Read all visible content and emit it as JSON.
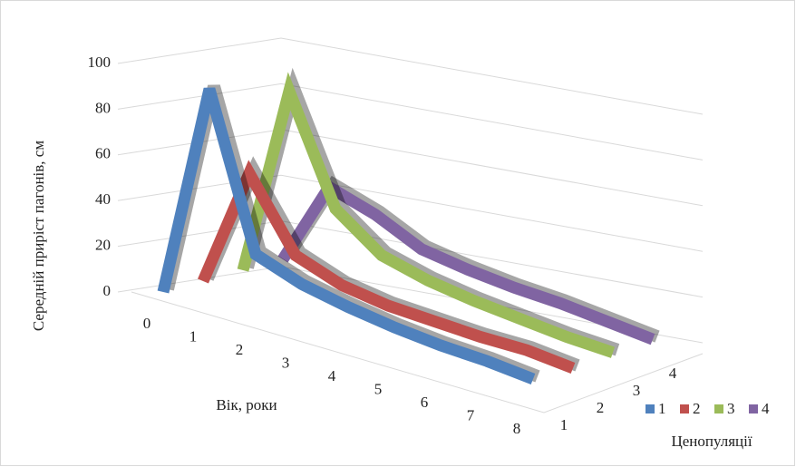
{
  "chart_data": {
    "type": "line3d",
    "y_label": "Середній приріст пагонів, см",
    "x_label": "Вік, роки",
    "z_label": "Ценопуляції",
    "categories": [
      "0",
      "1",
      "2",
      "3",
      "4",
      "5",
      "6",
      "7",
      "8"
    ],
    "z_categories": [
      "1",
      "2",
      "3",
      "4"
    ],
    "ylim": [
      0,
      100
    ],
    "yticks": [
      0,
      20,
      40,
      60,
      80,
      100
    ],
    "grid": true,
    "series": [
      {
        "name": "1",
        "color": "#4f81bd",
        "values": [
          0,
          90,
          25,
          17,
          12,
          8,
          5,
          3,
          0
        ]
      },
      {
        "name": "2",
        "color": "#c0504d",
        "values": [
          0,
          50,
          20,
          12,
          8,
          6,
          4,
          3,
          0
        ]
      },
      {
        "name": "3",
        "color": "#9bbb59",
        "values": [
          0,
          80,
          35,
          20,
          14,
          10,
          7,
          4,
          2
        ]
      },
      {
        "name": "4",
        "color": "#8064a2",
        "values": [
          0,
          35,
          28,
          18,
          14,
          11,
          9,
          6,
          3
        ]
      }
    ]
  }
}
